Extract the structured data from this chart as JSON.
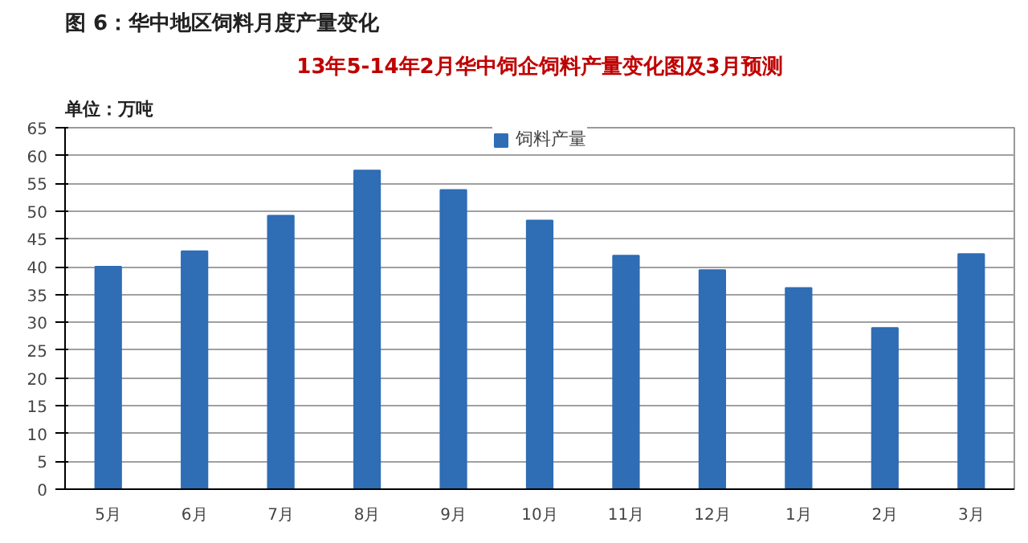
{
  "chart_data": {
    "type": "bar",
    "title": "图 6：华中地区饲料月度产量变化",
    "subtitle": "13年5-14年2月华中饲企饲料产量变化图及3月预测",
    "ylabel": "单位：万吨",
    "categories": [
      "5月",
      "6月",
      "7月",
      "8月",
      "9月",
      "10月",
      "11月",
      "12月",
      "1月",
      "2月",
      "3月"
    ],
    "series": [
      {
        "name": "饲料产量",
        "color": "#2f6db5",
        "values": [
          40,
          42.8,
          49.2,
          57.3,
          53.8,
          48.3,
          42,
          39.4,
          36.2,
          29,
          42.3
        ]
      }
    ],
    "ylim": [
      0,
      65
    ],
    "yticks": [
      0,
      5,
      10,
      15,
      20,
      25,
      30,
      35,
      40,
      45,
      50,
      55,
      60,
      65
    ],
    "grid": "y",
    "legend": "top"
  }
}
